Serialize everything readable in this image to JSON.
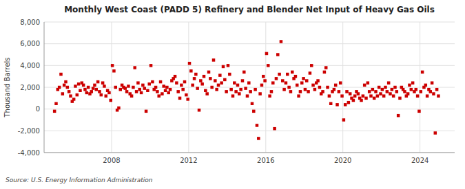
{
  "chart_data": {
    "type": "scatter",
    "title": "Monthly West Coast (PADD 5) Refinery and Blender Net Input of Heavy Gas Oils",
    "ylabel": "Thousand Barrels",
    "source": "Source: U.S. Energy Information Administration",
    "color": "#cc0000",
    "marker": "square",
    "grid": true,
    "xlim": [
      2004.5,
      2025.8
    ],
    "xticks": [
      2008,
      2012,
      2016,
      2020,
      2024
    ],
    "ylim": [
      -4000,
      8000
    ],
    "yticks": [
      {
        "value": -4000,
        "label": "-4,000"
      },
      {
        "value": -2000,
        "label": "-2,000"
      },
      0,
      {
        "value": 2000,
        "label": "2,000"
      },
      {
        "value": 4000,
        "label": "4,000"
      },
      {
        "value": 6000,
        "label": "6,000"
      },
      {
        "value": 8000,
        "label": "8,000"
      }
    ],
    "x": [
      2005.042,
      2005.125,
      2005.208,
      2005.292,
      2005.375,
      2005.458,
      2005.542,
      2005.625,
      2005.708,
      2005.792,
      2005.875,
      2005.958,
      2006.042,
      2006.125,
      2006.208,
      2006.292,
      2006.375,
      2006.458,
      2006.542,
      2006.625,
      2006.708,
      2006.792,
      2006.875,
      2006.958,
      2007.042,
      2007.125,
      2007.208,
      2007.292,
      2007.375,
      2007.458,
      2007.542,
      2007.625,
      2007.708,
      2007.792,
      2007.875,
      2007.958,
      2008.042,
      2008.125,
      2008.208,
      2008.292,
      2008.375,
      2008.458,
      2008.542,
      2008.625,
      2008.708,
      2008.792,
      2008.875,
      2008.958,
      2009.042,
      2009.125,
      2009.208,
      2009.292,
      2009.375,
      2009.458,
      2009.542,
      2009.625,
      2009.708,
      2009.792,
      2009.875,
      2009.958,
      2010.042,
      2010.125,
      2010.208,
      2010.292,
      2010.375,
      2010.458,
      2010.542,
      2010.625,
      2010.708,
      2010.792,
      2010.875,
      2010.958,
      2011.042,
      2011.125,
      2011.208,
      2011.292,
      2011.375,
      2011.458,
      2011.542,
      2011.625,
      2011.708,
      2011.792,
      2011.875,
      2011.958,
      2012.042,
      2012.125,
      2012.208,
      2012.292,
      2012.375,
      2012.458,
      2012.542,
      2012.625,
      2012.708,
      2012.792,
      2012.875,
      2012.958,
      2013.042,
      2013.125,
      2013.208,
      2013.292,
      2013.375,
      2013.458,
      2013.542,
      2013.625,
      2013.708,
      2013.792,
      2013.875,
      2013.958,
      2014.042,
      2014.125,
      2014.208,
      2014.292,
      2014.375,
      2014.458,
      2014.542,
      2014.625,
      2014.708,
      2014.792,
      2014.875,
      2014.958,
      2015.042,
      2015.125,
      2015.208,
      2015.292,
      2015.375,
      2015.458,
      2015.542,
      2015.625,
      2015.708,
      2015.792,
      2015.875,
      2015.958,
      2016.042,
      2016.125,
      2016.208,
      2016.292,
      2016.375,
      2016.458,
      2016.542,
      2016.625,
      2016.708,
      2016.792,
      2016.875,
      2016.958,
      2017.042,
      2017.125,
      2017.208,
      2017.292,
      2017.375,
      2017.458,
      2017.542,
      2017.625,
      2017.708,
      2017.792,
      2017.875,
      2017.958,
      2018.042,
      2018.125,
      2018.208,
      2018.292,
      2018.375,
      2018.458,
      2018.542,
      2018.625,
      2018.708,
      2018.792,
      2018.875,
      2018.958,
      2019.042,
      2019.125,
      2019.208,
      2019.292,
      2019.375,
      2019.458,
      2019.542,
      2019.625,
      2019.708,
      2019.792,
      2019.875,
      2019.958,
      2020.042,
      2020.125,
      2020.208,
      2020.292,
      2020.375,
      2020.458,
      2020.542,
      2020.625,
      2020.708,
      2020.792,
      2020.875,
      2020.958,
      2021.042,
      2021.125,
      2021.208,
      2021.292,
      2021.375,
      2021.458,
      2021.542,
      2021.625,
      2021.708,
      2021.792,
      2021.875,
      2021.958,
      2022.042,
      2022.125,
      2022.208,
      2022.292,
      2022.375,
      2022.458,
      2022.542,
      2022.625,
      2022.708,
      2022.792,
      2022.875,
      2022.958,
      2023.042,
      2023.125,
      2023.208,
      2023.292,
      2023.375,
      2023.458,
      2023.542,
      2023.625,
      2023.708,
      2023.792,
      2023.875,
      2023.958,
      2024.042,
      2024.125,
      2024.208,
      2024.292,
      2024.375,
      2024.458,
      2024.542,
      2024.625,
      2024.708,
      2024.792,
      2024.875,
      2024.958
    ],
    "values": [
      -200,
      500,
      1800,
      2000,
      3200,
      1400,
      2200,
      2500,
      2000,
      1600,
      1200,
      700,
      900,
      2100,
      1300,
      2300,
      1700,
      2400,
      2200,
      1800,
      1500,
      2000,
      1400,
      1600,
      1900,
      2200,
      1800,
      2500,
      1600,
      1300,
      2400,
      2100,
      1200,
      1700,
      1500,
      800,
      4000,
      3500,
      2000,
      -100,
      100,
      1800,
      2200,
      2000,
      1900,
      1600,
      2100,
      1400,
      1200,
      2000,
      3800,
      1600,
      2400,
      1800,
      1500,
      2200,
      1900,
      -200,
      1700,
      2300,
      4000,
      2500,
      1800,
      2000,
      1600,
      1200,
      2500,
      1400,
      2100,
      1700,
      2000,
      1500,
      1800,
      2600,
      2800,
      3000,
      2400,
      1600,
      1000,
      2200,
      1800,
      2500,
      1300,
      900,
      4200,
      3500,
      2200,
      2800,
      3200,
      1900,
      -100,
      2600,
      2300,
      3000,
      1700,
      1400,
      3400,
      2800,
      2000,
      4500,
      2600,
      1800,
      2200,
      3100,
      2400,
      3900,
      2700,
      1600,
      4000,
      3200,
      1800,
      1200,
      2400,
      1600,
      2200,
      1400,
      1800,
      2600,
      3400,
      1900,
      1200,
      2400,
      1600,
      500,
      -200,
      1800,
      -1500,
      -2700,
      1400,
      2200,
      3000,
      2600,
      5100,
      4000,
      1200,
      1600,
      2400,
      -1800,
      2800,
      5000,
      3200,
      6200,
      2600,
      1800,
      2400,
      3200,
      2000,
      1600,
      3400,
      2800,
      3000,
      2200,
      1200,
      1600,
      2400,
      2800,
      1800,
      2600,
      1600,
      3300,
      4000,
      2200,
      1800,
      2400,
      2600,
      2000,
      1400,
      1600,
      3400,
      3800,
      2000,
      1200,
      500,
      1600,
      1800,
      2200,
      400,
      1600,
      2400,
      1200,
      -1000,
      400,
      1600,
      600,
      1400,
      1000,
      800,
      1200,
      1600,
      1400,
      1000,
      800,
      1200,
      2200,
      1000,
      2400,
      1600,
      1200,
      1800,
      1000,
      1600,
      1200,
      2000,
      1400,
      1800,
      1200,
      2000,
      1600,
      2400,
      1400,
      1800,
      1200,
      2000,
      1600,
      -600,
      1000,
      2000,
      1800,
      1600,
      1200,
      1400,
      2200,
      1800,
      2400,
      1600,
      1800,
      1200,
      -200,
      1600,
      3400,
      2000,
      2200,
      1200,
      1800,
      1600,
      2400,
      1400,
      -2200,
      1800,
      1200
    ]
  }
}
